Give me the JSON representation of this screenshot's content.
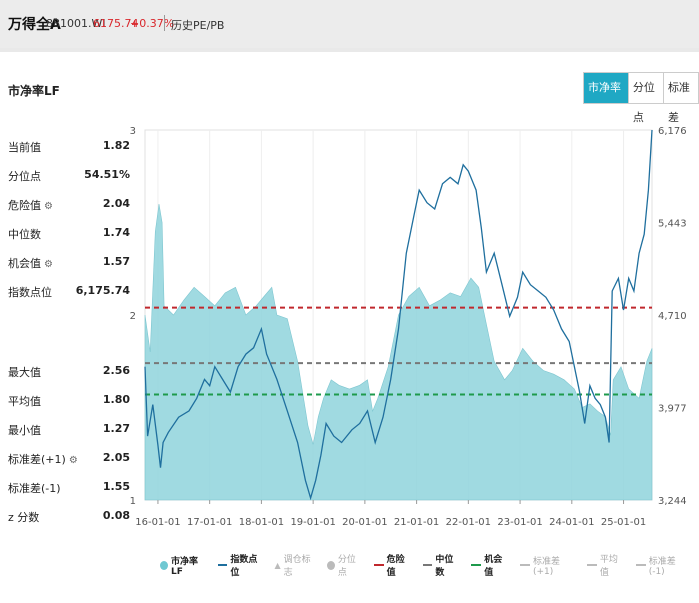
{
  "header": {
    "title": "万得全A",
    "code": "881001.WI",
    "price": "6175.74",
    "change": "+0.37%",
    "history_label": "历史PE/PB"
  },
  "panel": {
    "title": "市净率LF"
  },
  "tabs": [
    {
      "label": "市净率LF",
      "active": true
    },
    {
      "label": "分位点",
      "active": false
    },
    {
      "label": "标准差",
      "active": false
    }
  ],
  "stats_top": [
    {
      "label": "当前值",
      "value": "1.82",
      "gear": false
    },
    {
      "label": "分位点",
      "value": "54.51%",
      "gear": false
    },
    {
      "label": "危险值",
      "value": "2.04",
      "gear": true
    },
    {
      "label": "中位数",
      "value": "1.74",
      "gear": false
    },
    {
      "label": "机会值",
      "value": "1.57",
      "gear": true
    },
    {
      "label": "指数点位",
      "value": "6,175.74",
      "gear": false
    }
  ],
  "stats_bottom": [
    {
      "label": "最大值",
      "value": "2.56",
      "gear": false
    },
    {
      "label": "平均值",
      "value": "1.80",
      "gear": false
    },
    {
      "label": "最小值",
      "value": "1.27",
      "gear": false
    },
    {
      "label": "标准差(+1)",
      "value": "2.05",
      "gear": true
    },
    {
      "label": "标准差(-1)",
      "value": "1.55",
      "gear": false
    },
    {
      "label": "z 分数",
      "value": "0.08",
      "gear": false
    }
  ],
  "legend": [
    {
      "label": "市净率LF",
      "marker": "dot",
      "color": "#6fc8d2",
      "active": true
    },
    {
      "label": "指数点位",
      "marker": "line",
      "color": "#1f6f9e",
      "active": true
    },
    {
      "label": "调仓标志",
      "marker": "triangle",
      "color": "#bbbbbb",
      "active": false
    },
    {
      "label": "分位点",
      "marker": "dot",
      "color": "#bbbbbb",
      "active": false
    },
    {
      "label": "危险值",
      "marker": "dash",
      "color": "#c0282d",
      "active": true
    },
    {
      "label": "中位数",
      "marker": "dash",
      "color": "#777777",
      "active": true
    },
    {
      "label": "机会值",
      "marker": "dash",
      "color": "#1e9a4c",
      "active": true
    },
    {
      "label": "标准差(+1)",
      "marker": "dash",
      "color": "#bbbbbb",
      "active": false
    },
    {
      "label": "平均值",
      "marker": "dash",
      "color": "#bbbbbb",
      "active": false
    },
    {
      "label": "标准差(-1)",
      "marker": "dash",
      "color": "#bbbbbb",
      "active": false
    }
  ],
  "chart_data": {
    "type": "area",
    "left_axis": {
      "ticks": [
        "1",
        "2",
        "3"
      ],
      "min": 1,
      "max": 3
    },
    "right_axis": {
      "ticks": [
        "3,244",
        "3,977",
        "4,710",
        "5,443",
        "6,176"
      ],
      "min": 3244,
      "max": 6176
    },
    "x_ticks": [
      "16-01-01",
      "17-01-01",
      "18-01-01",
      "19-01-01",
      "20-01-01",
      "21-01-01",
      "22-01-01",
      "23-01-01",
      "24-01-01",
      "25-01-01"
    ],
    "x_range": [
      2015.75,
      2025.55
    ],
    "reference_lines": [
      {
        "name": "危险值",
        "value": 2.04,
        "color": "#c0282d"
      },
      {
        "name": "中位数",
        "value": 1.74,
        "color": "#777777"
      },
      {
        "name": "机会值",
        "value": 1.57,
        "color": "#1e9a4c"
      }
    ],
    "series": [
      {
        "name": "市净率LF",
        "axis": "left",
        "color": "#8fd3dc",
        "points": [
          [
            2015.75,
            2.0
          ],
          [
            2015.85,
            1.8
          ],
          [
            2015.95,
            2.45
          ],
          [
            2016.02,
            2.6
          ],
          [
            2016.08,
            2.5
          ],
          [
            2016.12,
            2.05
          ],
          [
            2016.3,
            2.0
          ],
          [
            2016.5,
            2.08
          ],
          [
            2016.7,
            2.15
          ],
          [
            2016.9,
            2.1
          ],
          [
            2017.1,
            2.05
          ],
          [
            2017.3,
            2.12
          ],
          [
            2017.5,
            2.15
          ],
          [
            2017.7,
            2.0
          ],
          [
            2017.9,
            2.05
          ],
          [
            2018.05,
            2.1
          ],
          [
            2018.2,
            2.15
          ],
          [
            2018.3,
            2.0
          ],
          [
            2018.5,
            1.98
          ],
          [
            2018.7,
            1.75
          ],
          [
            2018.9,
            1.4
          ],
          [
            2019.0,
            1.3
          ],
          [
            2019.1,
            1.45
          ],
          [
            2019.2,
            1.55
          ],
          [
            2019.35,
            1.65
          ],
          [
            2019.5,
            1.62
          ],
          [
            2019.7,
            1.6
          ],
          [
            2019.9,
            1.62
          ],
          [
            2020.05,
            1.65
          ],
          [
            2020.15,
            1.48
          ],
          [
            2020.25,
            1.55
          ],
          [
            2020.45,
            1.72
          ],
          [
            2020.65,
            2.0
          ],
          [
            2020.85,
            2.1
          ],
          [
            2021.05,
            2.15
          ],
          [
            2021.25,
            2.05
          ],
          [
            2021.45,
            2.08
          ],
          [
            2021.65,
            2.12
          ],
          [
            2021.85,
            2.1
          ],
          [
            2022.05,
            2.2
          ],
          [
            2022.2,
            2.15
          ],
          [
            2022.35,
            1.95
          ],
          [
            2022.5,
            1.75
          ],
          [
            2022.7,
            1.65
          ],
          [
            2022.85,
            1.7
          ],
          [
            2023.05,
            1.82
          ],
          [
            2023.25,
            1.75
          ],
          [
            2023.45,
            1.7
          ],
          [
            2023.65,
            1.68
          ],
          [
            2023.85,
            1.65
          ],
          [
            2024.05,
            1.6
          ],
          [
            2024.2,
            1.5
          ],
          [
            2024.35,
            1.52
          ],
          [
            2024.5,
            1.48
          ],
          [
            2024.65,
            1.45
          ],
          [
            2024.75,
            1.35
          ],
          [
            2024.8,
            1.65
          ],
          [
            2024.95,
            1.72
          ],
          [
            2025.1,
            1.6
          ],
          [
            2025.3,
            1.55
          ],
          [
            2025.45,
            1.75
          ],
          [
            2025.55,
            1.82
          ]
        ]
      },
      {
        "name": "指数点位",
        "axis": "right",
        "color": "#1f6f9e",
        "points": [
          [
            2015.75,
            4300
          ],
          [
            2015.8,
            3750
          ],
          [
            2015.9,
            4000
          ],
          [
            2016.0,
            3680
          ],
          [
            2016.05,
            3500
          ],
          [
            2016.1,
            3700
          ],
          [
            2016.2,
            3780
          ],
          [
            2016.4,
            3900
          ],
          [
            2016.6,
            3950
          ],
          [
            2016.75,
            4050
          ],
          [
            2016.9,
            4200
          ],
          [
            2017.0,
            4150
          ],
          [
            2017.1,
            4300
          ],
          [
            2017.25,
            4200
          ],
          [
            2017.4,
            4100
          ],
          [
            2017.55,
            4300
          ],
          [
            2017.7,
            4400
          ],
          [
            2017.85,
            4450
          ],
          [
            2018.0,
            4600
          ],
          [
            2018.1,
            4400
          ],
          [
            2018.3,
            4200
          ],
          [
            2018.5,
            3950
          ],
          [
            2018.7,
            3700
          ],
          [
            2018.85,
            3400
          ],
          [
            2018.95,
            3260
          ],
          [
            2019.05,
            3400
          ],
          [
            2019.15,
            3600
          ],
          [
            2019.25,
            3850
          ],
          [
            2019.4,
            3750
          ],
          [
            2019.55,
            3700
          ],
          [
            2019.75,
            3800
          ],
          [
            2019.9,
            3850
          ],
          [
            2020.05,
            3950
          ],
          [
            2020.2,
            3700
          ],
          [
            2020.35,
            3900
          ],
          [
            2020.5,
            4200
          ],
          [
            2020.65,
            4600
          ],
          [
            2020.8,
            5200
          ],
          [
            2020.95,
            5500
          ],
          [
            2021.05,
            5700
          ],
          [
            2021.2,
            5600
          ],
          [
            2021.35,
            5550
          ],
          [
            2021.5,
            5750
          ],
          [
            2021.65,
            5800
          ],
          [
            2021.8,
            5750
          ],
          [
            2021.9,
            5900
          ],
          [
            2022.0,
            5850
          ],
          [
            2022.15,
            5700
          ],
          [
            2022.25,
            5400
          ],
          [
            2022.35,
            5050
          ],
          [
            2022.5,
            5200
          ],
          [
            2022.65,
            4950
          ],
          [
            2022.8,
            4700
          ],
          [
            2022.95,
            4850
          ],
          [
            2023.05,
            5050
          ],
          [
            2023.2,
            4950
          ],
          [
            2023.35,
            4900
          ],
          [
            2023.5,
            4850
          ],
          [
            2023.65,
            4750
          ],
          [
            2023.8,
            4600
          ],
          [
            2023.95,
            4500
          ],
          [
            2024.05,
            4300
          ],
          [
            2024.15,
            4100
          ],
          [
            2024.25,
            3850
          ],
          [
            2024.35,
            4150
          ],
          [
            2024.45,
            4050
          ],
          [
            2024.55,
            4000
          ],
          [
            2024.65,
            3900
          ],
          [
            2024.72,
            3700
          ],
          [
            2024.78,
            4900
          ],
          [
            2024.9,
            5000
          ],
          [
            2025.0,
            4750
          ],
          [
            2025.1,
            5000
          ],
          [
            2025.2,
            4900
          ],
          [
            2025.3,
            5200
          ],
          [
            2025.4,
            5350
          ],
          [
            2025.48,
            5700
          ],
          [
            2025.55,
            6176
          ]
        ]
      }
    ]
  }
}
